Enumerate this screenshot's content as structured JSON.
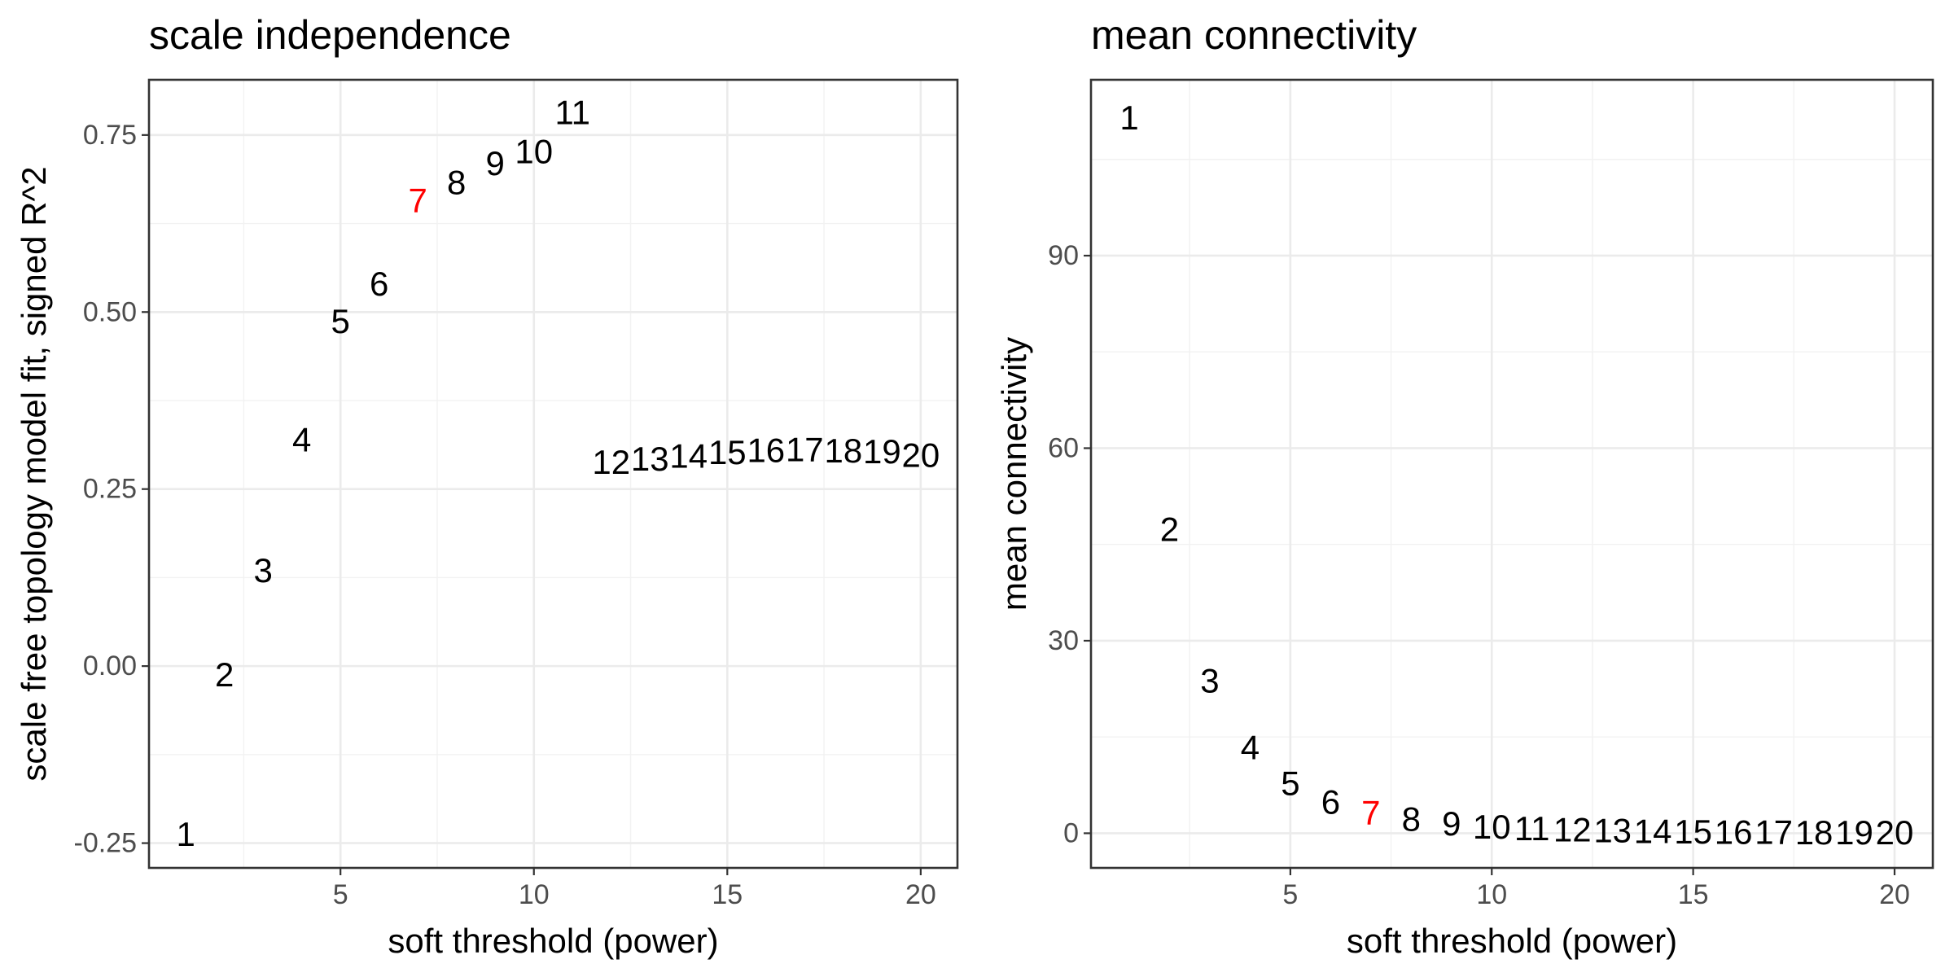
{
  "chart_data": [
    {
      "type": "scatter",
      "title": "scale independence",
      "xlabel": "soft threshold (power)",
      "ylabel": "scale free topology model fit, signed R^2",
      "xlim": [
        0.05,
        20.95
      ],
      "ylim": [
        -0.285,
        0.828
      ],
      "x_ticks": [
        5,
        10,
        15,
        20
      ],
      "y_ticks": [
        -0.25,
        0.0,
        0.25,
        0.5,
        0.75
      ],
      "y_tick_labels": [
        "-0.25",
        "0.00",
        "0.25",
        "0.50",
        "0.75"
      ],
      "x_minor": [
        2.5,
        7.5,
        12.5,
        17.5
      ],
      "y_minor": [
        -0.125,
        0.125,
        0.375,
        0.625
      ],
      "grid": true,
      "highlight_power": 7,
      "label_color": "#000000",
      "highlight_color": "#ff0000",
      "points": [
        {
          "x": 1,
          "y": -0.237,
          "label": "1"
        },
        {
          "x": 2,
          "y": -0.012,
          "label": "2"
        },
        {
          "x": 3,
          "y": 0.135,
          "label": "3"
        },
        {
          "x": 4,
          "y": 0.32,
          "label": "4"
        },
        {
          "x": 5,
          "y": 0.487,
          "label": "5"
        },
        {
          "x": 6,
          "y": 0.54,
          "label": "6"
        },
        {
          "x": 7,
          "y": 0.658,
          "label": "7"
        },
        {
          "x": 8,
          "y": 0.683,
          "label": "8"
        },
        {
          "x": 9,
          "y": 0.71,
          "label": "9"
        },
        {
          "x": 10,
          "y": 0.727,
          "label": "10"
        },
        {
          "x": 11,
          "y": 0.782,
          "label": "11"
        },
        {
          "x": 12,
          "y": 0.288,
          "label": "12"
        },
        {
          "x": 13,
          "y": 0.293,
          "label": "13"
        },
        {
          "x": 14,
          "y": 0.297,
          "label": "14"
        },
        {
          "x": 15,
          "y": 0.302,
          "label": "15"
        },
        {
          "x": 16,
          "y": 0.305,
          "label": "16"
        },
        {
          "x": 17,
          "y": 0.306,
          "label": "17"
        },
        {
          "x": 18,
          "y": 0.304,
          "label": "18"
        },
        {
          "x": 19,
          "y": 0.303,
          "label": "19"
        },
        {
          "x": 20,
          "y": 0.298,
          "label": "20"
        }
      ]
    },
    {
      "type": "scatter",
      "title": "mean connectivity",
      "xlabel": "soft threshold (power)",
      "ylabel": "mean connectivity",
      "xlim": [
        0.05,
        20.95
      ],
      "ylim": [
        -5.4,
        117.4
      ],
      "x_ticks": [
        5,
        10,
        15,
        20
      ],
      "y_ticks": [
        0,
        30,
        60,
        90
      ],
      "y_tick_labels": [
        "0",
        "30",
        "60",
        "90"
      ],
      "x_minor": [
        2.5,
        7.5,
        12.5,
        17.5
      ],
      "y_minor": [
        15,
        45,
        75,
        105
      ],
      "grid": true,
      "highlight_power": 7,
      "label_color": "#000000",
      "highlight_color": "#ff0000",
      "points": [
        {
          "x": 1,
          "y": 111.5,
          "label": "1"
        },
        {
          "x": 2,
          "y": 47.4,
          "label": "2"
        },
        {
          "x": 3,
          "y": 23.8,
          "label": "3"
        },
        {
          "x": 4,
          "y": 13.4,
          "label": "4"
        },
        {
          "x": 5,
          "y": 7.8,
          "label": "5"
        },
        {
          "x": 6,
          "y": 4.9,
          "label": "6"
        },
        {
          "x": 7,
          "y": 3.2,
          "label": "7"
        },
        {
          "x": 8,
          "y": 2.2,
          "label": "8"
        },
        {
          "x": 9,
          "y": 1.5,
          "label": "9"
        },
        {
          "x": 10,
          "y": 1.0,
          "label": "10"
        },
        {
          "x": 11,
          "y": 0.75,
          "label": "11"
        },
        {
          "x": 12,
          "y": 0.55,
          "label": "12"
        },
        {
          "x": 13,
          "y": 0.42,
          "label": "13"
        },
        {
          "x": 14,
          "y": 0.33,
          "label": "14"
        },
        {
          "x": 15,
          "y": 0.26,
          "label": "15"
        },
        {
          "x": 16,
          "y": 0.21,
          "label": "16"
        },
        {
          "x": 17,
          "y": 0.17,
          "label": "17"
        },
        {
          "x": 18,
          "y": 0.14,
          "label": "18"
        },
        {
          "x": 19,
          "y": 0.12,
          "label": "19"
        },
        {
          "x": 20,
          "y": 0.1,
          "label": "20"
        }
      ]
    }
  ]
}
